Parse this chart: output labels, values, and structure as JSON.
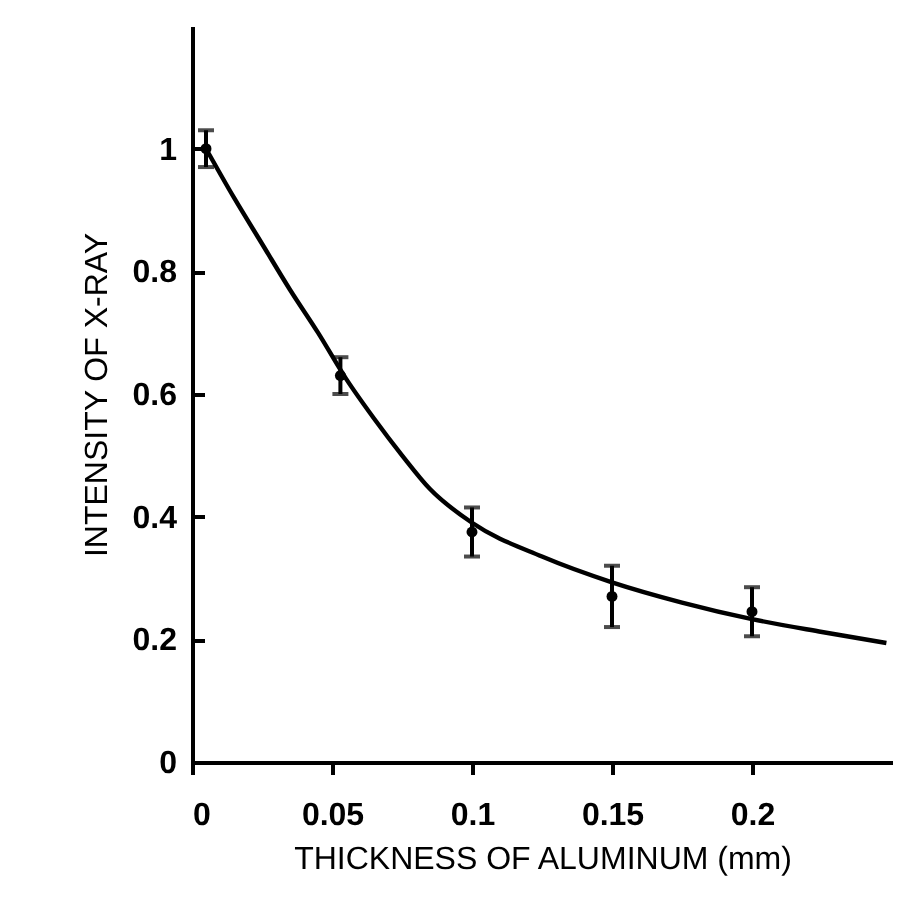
{
  "chart_data": {
    "type": "scatter",
    "xlabel": "THICKNESS OF ALUMINUM (mm)",
    "ylabel": "INTENSITY OF X-RAY",
    "xlim": [
      0,
      0.25
    ],
    "ylim": [
      0,
      1.2
    ],
    "xticks": [
      0,
      0.05,
      0.1,
      0.15,
      0.2
    ],
    "yticks": [
      0,
      0.2,
      0.4,
      0.6,
      0.8,
      1
    ],
    "series": [
      {
        "type": "scatter",
        "color": "#000000",
        "marker": "circle",
        "x": [
          0.005,
          0.053,
          0.1,
          0.15,
          0.2
        ],
        "values": [
          1.0,
          0.63,
          0.375,
          0.27,
          0.245
        ],
        "errors": [
          0.03,
          0.03,
          0.04,
          0.05,
          0.04
        ]
      },
      {
        "type": "line",
        "color": "#000000",
        "x": [
          0.005,
          0.015,
          0.025,
          0.035,
          0.045,
          0.055,
          0.065,
          0.075,
          0.085,
          0.1,
          0.125,
          0.15,
          0.175,
          0.2,
          0.225,
          0.248
        ],
        "values": [
          1.0,
          0.92,
          0.845,
          0.77,
          0.7,
          0.625,
          0.56,
          0.5,
          0.445,
          0.39,
          0.335,
          0.293,
          0.26,
          0.233,
          0.212,
          0.194
        ]
      }
    ]
  }
}
